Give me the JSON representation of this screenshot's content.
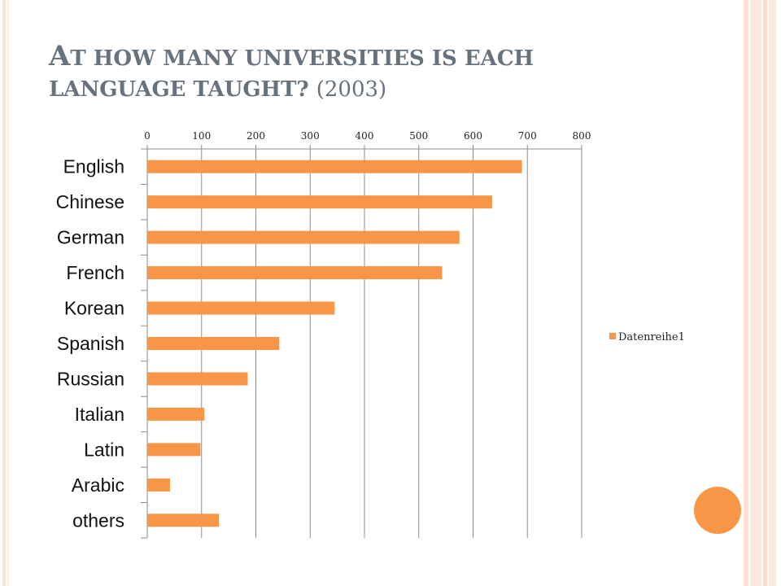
{
  "title": {
    "line1_cap": "A",
    "line1_rest": "T HOW MANY UNIVERSITIES IS EACH",
    "line2": "LANGUAGE TAUGHT?",
    "year": "(2003)"
  },
  "colors": {
    "bar": "#f79646",
    "title": "#66727d",
    "grid": "#8c8c8c"
  },
  "chart_data": {
    "type": "bar",
    "orientation": "horizontal",
    "title": "AT HOW MANY UNIVERSITIES IS EACH LANGUAGE TAUGHT? (2003)",
    "categories": [
      "English",
      "Chinese",
      "German",
      "French",
      "Korean",
      "Spanish",
      "Russian",
      "Italian",
      "Latin",
      "Arabic",
      "others"
    ],
    "series": [
      {
        "name": "Datenreihe1",
        "values": [
          690,
          635,
          575,
          543,
          345,
          243,
          185,
          105,
          98,
          42,
          132
        ]
      }
    ],
    "xlim": [
      0,
      800
    ],
    "xticks": [
      0,
      100,
      200,
      300,
      400,
      500,
      600,
      700,
      800
    ],
    "x_axis_position": "top",
    "grid": true,
    "legend_position": "right"
  }
}
